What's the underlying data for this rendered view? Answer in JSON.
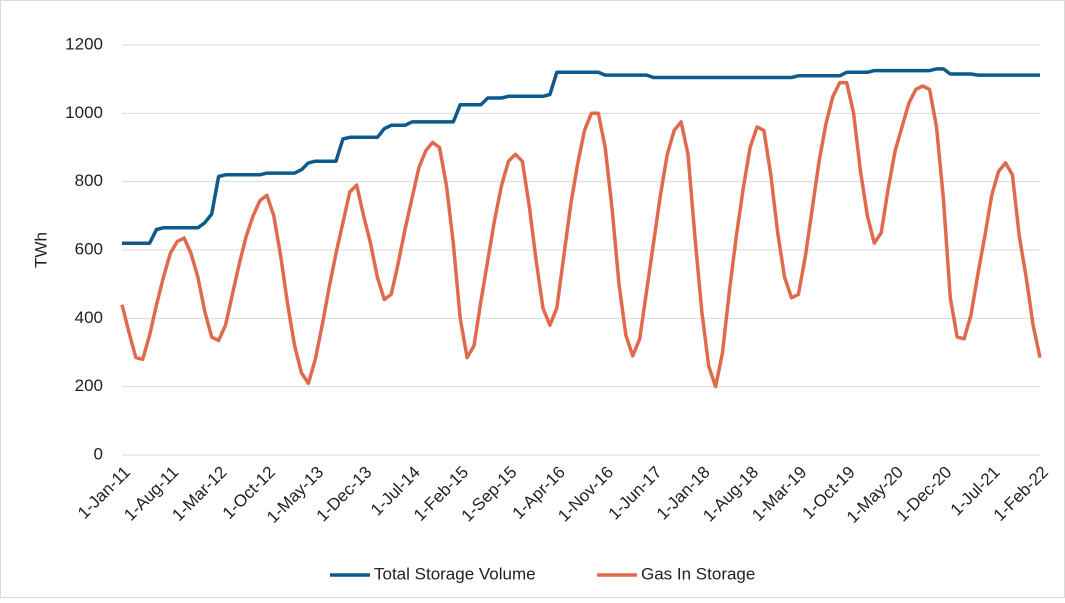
{
  "chart_data": {
    "type": "line",
    "y_label": "TWh",
    "categories": [
      "1-Jan-11",
      null,
      null,
      null,
      null,
      null,
      null,
      "1-Aug-11",
      null,
      null,
      null,
      null,
      null,
      null,
      "1-Mar-12",
      null,
      null,
      null,
      null,
      null,
      null,
      "1-Oct-12",
      null,
      null,
      null,
      null,
      null,
      null,
      "1-May-13",
      null,
      null,
      null,
      null,
      null,
      null,
      "1-Dec-13",
      null,
      null,
      null,
      null,
      null,
      null,
      "1-Jul-14",
      null,
      null,
      null,
      null,
      null,
      null,
      "1-Feb-15",
      null,
      null,
      null,
      null,
      null,
      null,
      "1-Sep-15",
      null,
      null,
      null,
      null,
      null,
      null,
      "1-Apr-16",
      null,
      null,
      null,
      null,
      null,
      null,
      "1-Nov-16",
      null,
      null,
      null,
      null,
      null,
      null,
      "1-Jun-17",
      null,
      null,
      null,
      null,
      null,
      null,
      "1-Jan-18",
      null,
      null,
      null,
      null,
      null,
      null,
      "1-Aug-18",
      null,
      null,
      null,
      null,
      null,
      null,
      "1-Mar-19",
      null,
      null,
      null,
      null,
      null,
      null,
      "1-Oct-19",
      null,
      null,
      null,
      null,
      null,
      null,
      "1-May-20",
      null,
      null,
      null,
      null,
      null,
      null,
      "1-Dec-20",
      null,
      null,
      null,
      null,
      null,
      null,
      "1-Jul-21",
      null,
      null,
      null,
      null,
      null,
      null,
      "1-Feb-22"
    ],
    "series": [
      {
        "name": "Total Storage Volume",
        "color": "#0f5a8c",
        "values": [
          620,
          620,
          620,
          620,
          620,
          660,
          665,
          665,
          665,
          665,
          665,
          665,
          680,
          705,
          815,
          820,
          820,
          820,
          820,
          820,
          820,
          825,
          825,
          825,
          825,
          825,
          835,
          855,
          860,
          860,
          860,
          860,
          925,
          930,
          930,
          930,
          930,
          930,
          955,
          965,
          965,
          965,
          975,
          975,
          975,
          975,
          975,
          975,
          975,
          1025,
          1025,
          1025,
          1025,
          1045,
          1045,
          1045,
          1050,
          1050,
          1050,
          1050,
          1050,
          1050,
          1055,
          1120,
          1120,
          1120,
          1120,
          1120,
          1120,
          1120,
          1112,
          1112,
          1112,
          1112,
          1112,
          1112,
          1112,
          1105,
          1105,
          1105,
          1105,
          1105,
          1105,
          1105,
          1105,
          1105,
          1105,
          1105,
          1105,
          1105,
          1105,
          1105,
          1105,
          1105,
          1105,
          1105,
          1105,
          1105,
          1110,
          1110,
          1110,
          1110,
          1110,
          1110,
          1110,
          1120,
          1120,
          1120,
          1120,
          1125,
          1125,
          1125,
          1125,
          1125,
          1125,
          1125,
          1125,
          1125,
          1130,
          1130,
          1115,
          1115,
          1115,
          1115,
          1112,
          1112,
          1112,
          1112,
          1112,
          1112,
          1112,
          1112,
          1112,
          1112
        ]
      },
      {
        "name": "Gas In Storage",
        "color": "#e06a4e",
        "values": [
          440,
          360,
          285,
          280,
          350,
          440,
          520,
          590,
          625,
          635,
          590,
          520,
          420,
          345,
          335,
          380,
          470,
          560,
          640,
          700,
          745,
          760,
          700,
          580,
          440,
          320,
          240,
          210,
          280,
          380,
          490,
          590,
          680,
          770,
          790,
          700,
          620,
          520,
          455,
          470,
          560,
          660,
          750,
          840,
          890,
          915,
          900,
          790,
          620,
          400,
          285,
          320,
          450,
          570,
          690,
          790,
          860,
          880,
          860,
          730,
          570,
          430,
          380,
          430,
          580,
          730,
          850,
          950,
          1000,
          1000,
          900,
          720,
          500,
          350,
          290,
          340,
          480,
          620,
          760,
          880,
          950,
          975,
          880,
          640,
          420,
          260,
          200,
          300,
          480,
          640,
          780,
          900,
          960,
          950,
          820,
          650,
          520,
          460,
          470,
          580,
          720,
          860,
          970,
          1050,
          1090,
          1090,
          1000,
          830,
          700,
          620,
          650,
          780,
          890,
          960,
          1030,
          1070,
          1080,
          1070,
          960,
          750,
          460,
          345,
          340,
          410,
          530,
          640,
          760,
          830,
          855,
          820,
          640,
          520,
          380,
          285
        ]
      }
    ],
    "ylim": [
      0,
      1200
    ],
    "yticks": [
      0,
      200,
      400,
      600,
      800,
      1000,
      1200
    ],
    "grid": true,
    "legend": "bottom"
  }
}
